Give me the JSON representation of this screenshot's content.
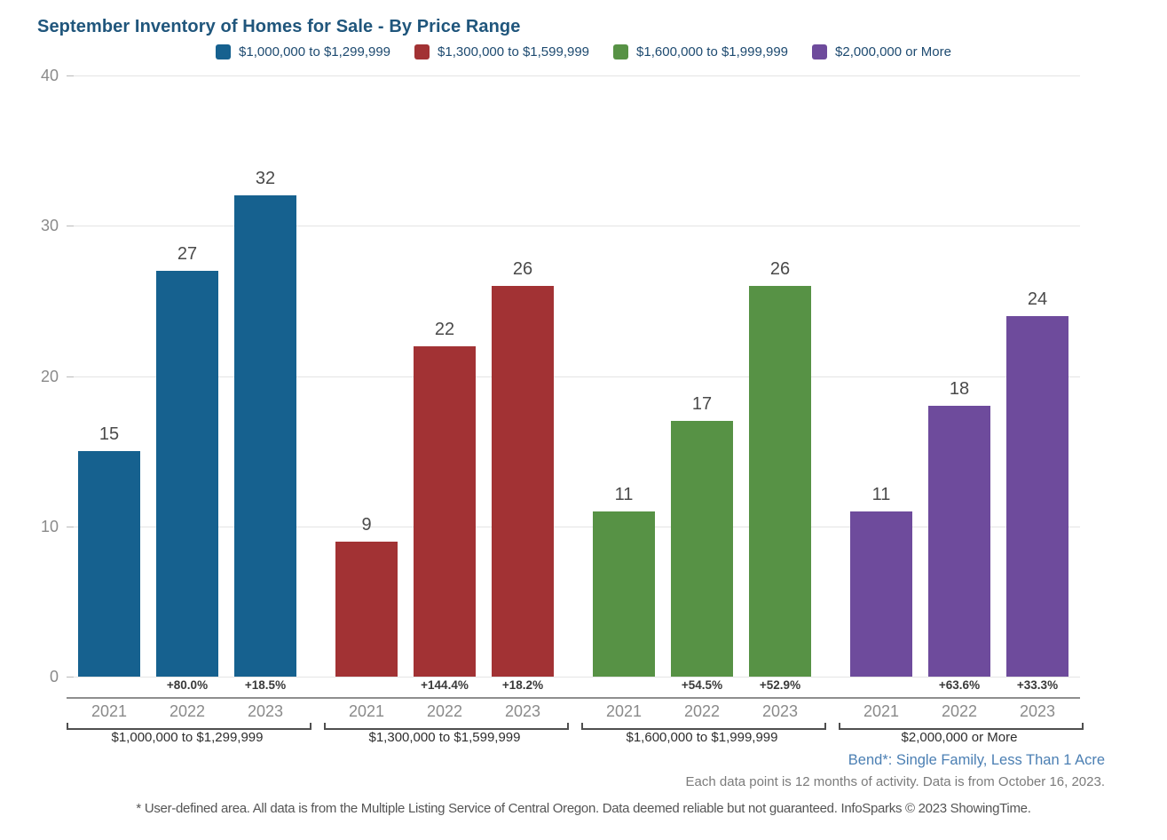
{
  "title": "September Inventory of Homes for Sale - By Price Range",
  "legend": [
    {
      "label": "$1,000,000 to $1,299,999",
      "color": "#16618f"
    },
    {
      "label": "$1,300,000 to $1,599,999",
      "color": "#a23234"
    },
    {
      "label": "$1,600,000 to $1,999,999",
      "color": "#579245"
    },
    {
      "label": "$2,000,000 or More",
      "color": "#6e4b9c"
    }
  ],
  "chart_data": {
    "type": "bar",
    "title": "September Inventory of Homes for Sale - By Price Range",
    "xlabel": "",
    "ylabel": "",
    "ylim": [
      0,
      40
    ],
    "yticks": [
      0,
      10,
      20,
      30,
      40
    ],
    "grid": "horizontal",
    "legend_position": "top",
    "years": [
      "2021",
      "2022",
      "2023"
    ],
    "groups": [
      {
        "label": "$1,000,000 to $1,299,999",
        "color": "#16618f",
        "values": [
          15,
          27,
          32
        ],
        "pct_change": [
          "",
          "+80.0%",
          "+18.5%"
        ]
      },
      {
        "label": "$1,300,000 to $1,599,999",
        "color": "#a23234",
        "values": [
          9,
          22,
          26
        ],
        "pct_change": [
          "",
          "+144.4%",
          "+18.2%"
        ]
      },
      {
        "label": "$1,600,000 to $1,999,999",
        "color": "#579245",
        "values": [
          11,
          17,
          26
        ],
        "pct_change": [
          "",
          "+54.5%",
          "+52.9%"
        ]
      },
      {
        "label": "$2,000,000 or More",
        "color": "#6e4b9c",
        "values": [
          11,
          18,
          24
        ],
        "pct_change": [
          "",
          "+63.6%",
          "+33.3%"
        ]
      }
    ]
  },
  "footnotes": {
    "area": "Bend*: Single Family, Less Than 1 Acre",
    "data_note": "Each data point is 12 months of activity. Data is from October 16, 2023.",
    "disclaimer": "* User-defined area. All data is from the Multiple Listing Service of Central Oregon. Data deemed reliable but not guaranteed. InfoSparks © 2023 ShowingTime."
  }
}
